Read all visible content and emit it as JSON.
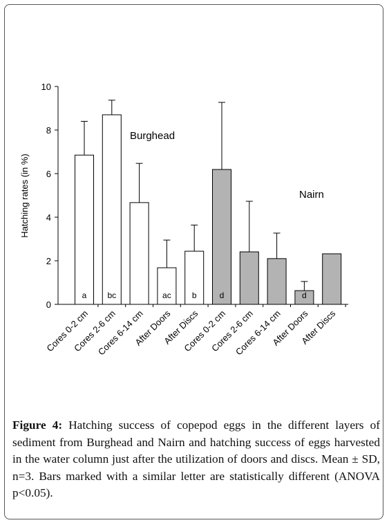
{
  "chart_data": {
    "type": "bar",
    "y_label": "Hatching rates (in %)",
    "categories": [
      "Cores 0-2 cm",
      "Cores 2-6 cm",
      "Cores 6-14 cm",
      "After Doors",
      "After Discs",
      "Cores 0-2 cm",
      "Cores 2-6 cm",
      "Cores 6-14 cm",
      "After Doors",
      "After Discs"
    ],
    "values": [
      6.85,
      8.7,
      4.67,
      1.68,
      2.44,
      6.19,
      2.41,
      2.1,
      0.63,
      2.32
    ],
    "errors": [
      1.55,
      0.67,
      1.8,
      1.27,
      1.2,
      3.08,
      2.32,
      1.17,
      0.42,
      null
    ],
    "colors": [
      "#ffffff",
      "#ffffff",
      "#ffffff",
      "#ffffff",
      "#ffffff",
      "#b3b3b3",
      "#b3b3b3",
      "#b3b3b3",
      "#b3b3b3",
      "#b3b3b3"
    ],
    "bar_letters": [
      "a",
      "bc",
      null,
      "ac",
      "b",
      "d",
      null,
      null,
      "d",
      null
    ],
    "annotations": [
      "Burghead",
      "Nairn"
    ],
    "ylim": [
      0,
      10
    ],
    "yticks": [
      0,
      2,
      4,
      6,
      8,
      10
    ]
  },
  "caption": {
    "label": "Figure 4:",
    "text": "Hatching success of copepod eggs in the different layers of sediment from Burghead and Nairn and hatching success of eggs harvested in the water column just after the utilization of doors and discs. Mean ± SD, n=3. Bars marked with a similar letter are statistically different (ANOVA p<0.05)."
  }
}
